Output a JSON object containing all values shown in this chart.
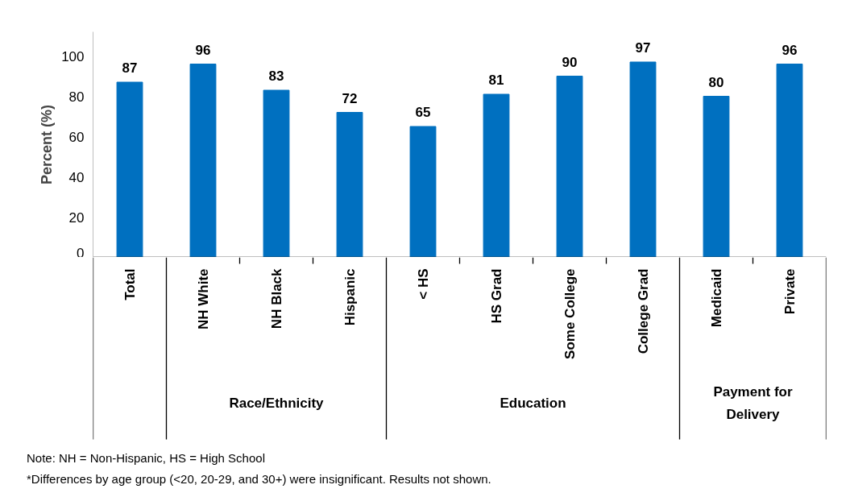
{
  "chart_data": {
    "type": "bar",
    "ylabel": "Percent (%)",
    "categories": [
      "Total",
      "NH White",
      "NH Black",
      "Hispanic",
      "< HS",
      "HS Grad",
      "Some College",
      "College Grad",
      "Medicaid",
      "Private"
    ],
    "values": [
      87,
      96,
      83,
      72,
      65,
      81,
      90,
      97,
      80,
      96
    ],
    "color": "#0070c0",
    "data_labels": true,
    "ylim": [
      0,
      112
    ],
    "yticks": [
      0,
      20,
      40,
      60,
      80,
      100
    ],
    "grid": false,
    "annotations": [
      "Race/Ethnicity",
      "Education",
      "Payment for Delivery",
      "Note: NH = Non-Hispanic, HS = High School",
      "*Differences by age group (<20, 20-29, and 30+) were insignificant. Results not shown."
    ]
  }
}
